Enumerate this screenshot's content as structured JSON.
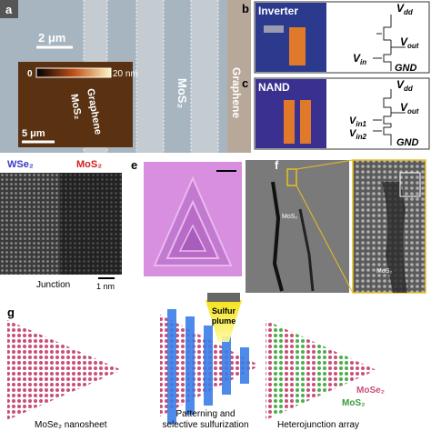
{
  "panel_a": {
    "label": "a",
    "scale_main": "2 μm",
    "stripe_mos2": "MoS₂",
    "stripe_graphene": "Graphene",
    "colorbar_min": "0",
    "colorbar_max": "20 nm",
    "inset_graphene": "Graphene",
    "inset_mos2": "MoS₂",
    "inset_scale": "5 μm"
  },
  "panel_b": {
    "label": "b",
    "title": "Inverter",
    "vdd": {
      "v": "V",
      "sub": "dd"
    },
    "vout": {
      "v": "V",
      "sub": "out"
    },
    "vin": {
      "v": "V",
      "sub": "in"
    },
    "gnd": "GND"
  },
  "panel_c": {
    "label": "c",
    "title": "NAND",
    "vdd": {
      "v": "V",
      "sub": "dd"
    },
    "vout": {
      "v": "V",
      "sub": "out"
    },
    "vin1": {
      "v": "V",
      "sub": "in1"
    },
    "vin2": {
      "v": "V",
      "sub": "in2"
    },
    "gnd": "GND"
  },
  "panel_d": {
    "wse2": "WSe₂",
    "mos2": "MoS₂",
    "caption": "Junction",
    "scale": "1 nm"
  },
  "panel_e": {
    "label": "e"
  },
  "panel_f": {
    "label": "f",
    "mos2_upper": "MoS₂",
    "mos2_lower": "MoS₂"
  },
  "panel_g": {
    "label": "g",
    "caption_1": "MoSe₂ nanosheet",
    "caption_2": [
      "Patterning and",
      "selective sulfurization"
    ],
    "plume": [
      "Sulfur",
      "plume"
    ],
    "caption_3": "Heterojunction array",
    "legend_mose2": "MoSe₂",
    "legend_mos2": "MoS₂"
  }
}
